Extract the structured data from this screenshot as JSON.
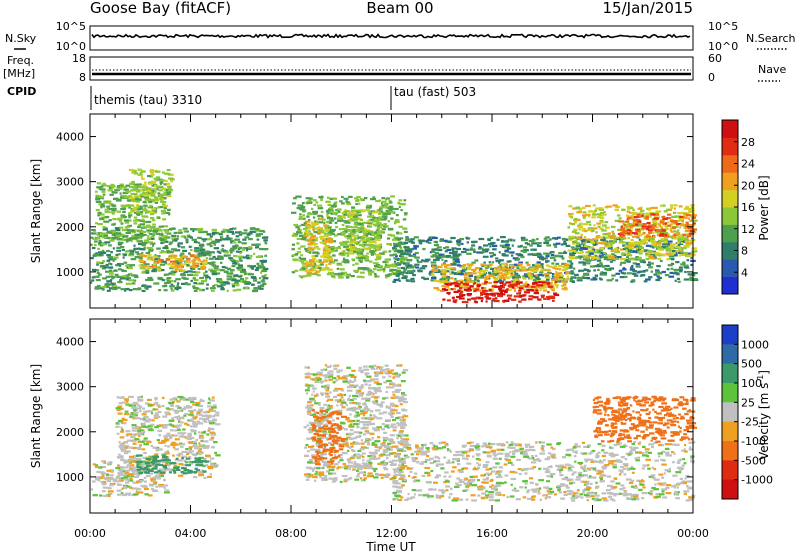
{
  "header": {
    "station": "Goose Bay (fitACF)",
    "beam": "Beam 00",
    "date": "15/Jan/2015"
  },
  "top_panels": {
    "nsky": {
      "label": "N.Sky",
      "ticks": [
        "10^5",
        "10^0"
      ],
      "right_label": "N.Search",
      "right_ticks": [
        "10^5",
        "10^0"
      ]
    },
    "freq": {
      "label": "Freq.",
      "unit": "[MHz]",
      "ticks": [
        "18",
        "8"
      ],
      "right_label": "Nave",
      "right_ticks": [
        "60",
        "0"
      ]
    },
    "cpid": {
      "label": "CPID",
      "modes": [
        {
          "name": "themis (tau) 3310",
          "start_hour": 0
        },
        {
          "name": "tau (fast) 503",
          "start_hour": 12
        }
      ]
    }
  },
  "chart_data": [
    {
      "type": "heatmap",
      "title": "",
      "xlabel": "Time UT",
      "ylabel": "Slant Range [km]",
      "xlim": [
        0,
        24
      ],
      "ylim": [
        200,
        4500
      ],
      "x_ticks": [
        "00:00",
        "04:00",
        "08:00",
        "12:00",
        "16:00",
        "20:00",
        "00:00"
      ],
      "y_ticks": [
        1000,
        2000,
        3000,
        4000
      ],
      "colorbar": {
        "label": "Power [dB]",
        "ticks": [
          "28",
          "24",
          "20",
          "16",
          "12",
          "8",
          "4"
        ],
        "colors": [
          "#1f2fd0",
          "#2a5ab0",
          "#2f7e6a",
          "#4ea04c",
          "#8ac838",
          "#d4d023",
          "#f0a020",
          "#ee6a1a",
          "#e02c14",
          "#d01010"
        ],
        "range": [
          0,
          30
        ]
      },
      "features": [
        {
          "t0": 0.0,
          "t1": 7.0,
          "r0": 600,
          "r1": 2000,
          "value": 10
        },
        {
          "t0": 0.2,
          "t1": 3.0,
          "r0": 1700,
          "r1": 3000,
          "value": 12
        },
        {
          "t0": 1.5,
          "t1": 3.2,
          "r0": 2300,
          "r1": 3300,
          "value": 14
        },
        {
          "t0": 1.8,
          "t1": 4.5,
          "r0": 1050,
          "r1": 1400,
          "value": 19
        },
        {
          "t0": 8.0,
          "t1": 12.5,
          "r0": 900,
          "r1": 2700,
          "value": 12
        },
        {
          "t0": 8.5,
          "t1": 9.5,
          "r0": 1000,
          "r1": 2200,
          "value": 18
        },
        {
          "t0": 10.0,
          "t1": 11.5,
          "r0": 1300,
          "r1": 2400,
          "value": 14
        },
        {
          "t0": 12.0,
          "t1": 24.0,
          "r0": 800,
          "r1": 1800,
          "value": 8
        },
        {
          "t0": 13.5,
          "t1": 19.0,
          "r0": 600,
          "r1": 1200,
          "value": 18
        },
        {
          "t0": 14.0,
          "t1": 18.5,
          "r0": 350,
          "r1": 800,
          "value": 27
        },
        {
          "t0": 19.0,
          "t1": 24.0,
          "r0": 1300,
          "r1": 2500,
          "value": 16
        },
        {
          "t0": 21.0,
          "t1": 24.0,
          "r0": 1800,
          "r1": 2300,
          "value": 23
        }
      ]
    },
    {
      "type": "heatmap",
      "title": "",
      "xlabel": "Time UT",
      "ylabel": "Slant Range [km]",
      "xlim": [
        0,
        24
      ],
      "ylim": [
        200,
        4500
      ],
      "x_ticks": [
        "00:00",
        "04:00",
        "08:00",
        "12:00",
        "16:00",
        "20:00",
        "00:00"
      ],
      "y_ticks": [
        1000,
        2000,
        3000,
        4000
      ],
      "colorbar": {
        "label": "Velocity [m s^-1]",
        "ticks": [
          "1000",
          "500",
          "100",
          "25",
          "-25",
          "-100",
          "-500",
          "-1000"
        ],
        "colors": [
          "#1b3fc8",
          "#2e6aa6",
          "#3c9a6a",
          "#5dc33a",
          "#c0c0c0",
          "#f0a020",
          "#f07018",
          "#e02a12",
          "#d01010"
        ],
        "range": [
          -1000,
          1000
        ]
      },
      "features": [
        {
          "t0": 0.0,
          "t1": 3.0,
          "r0": 600,
          "r1": 1400,
          "value": 0
        },
        {
          "t0": 1.0,
          "t1": 5.0,
          "r0": 1000,
          "r1": 2800,
          "value": 0
        },
        {
          "t0": 1.8,
          "t1": 4.6,
          "r0": 1100,
          "r1": 1500,
          "value": 150
        },
        {
          "t0": 8.5,
          "t1": 12.5,
          "r0": 900,
          "r1": 3500,
          "value": 0
        },
        {
          "t0": 8.8,
          "t1": 10.0,
          "r0": 1300,
          "r1": 2500,
          "value": -150
        },
        {
          "t0": 12.0,
          "t1": 24.0,
          "r0": 500,
          "r1": 1800,
          "value": 0
        },
        {
          "t0": 20.0,
          "t1": 24.0,
          "r0": 1800,
          "r1": 2800,
          "value": -200
        }
      ]
    }
  ]
}
